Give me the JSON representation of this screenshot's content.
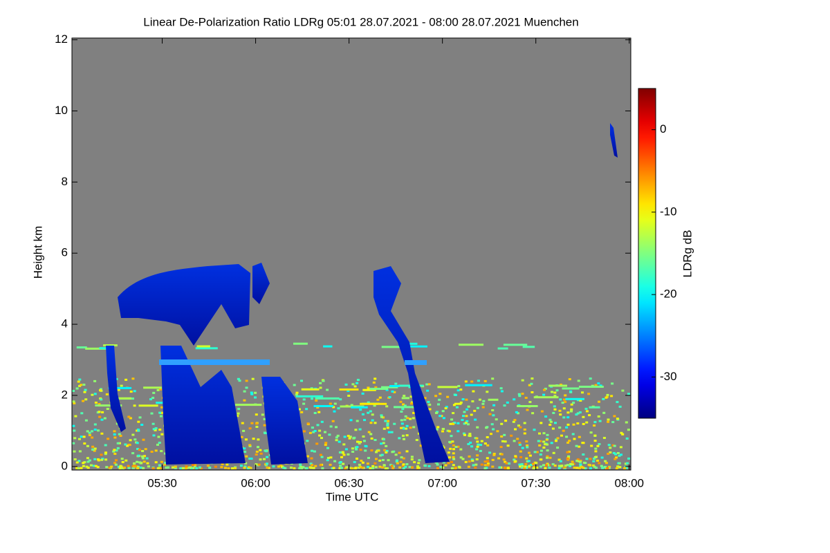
{
  "chart_data": {
    "type": "heatmap",
    "title": "Linear De-Polarization Ratio LDRg   05:01 28.07.2021 - 08:00 28.07.2021 Muenchen",
    "x_label": "Time UTC",
    "y_label": "Height km",
    "colorbar_label": "LDRg dB",
    "colormap": "jet",
    "background_color": "#808080",
    "xlim": [
      301,
      480.5
    ],
    "xticks": [
      {
        "value": 330,
        "label": "05:30"
      },
      {
        "value": 360,
        "label": "06:00"
      },
      {
        "value": 390,
        "label": "06:30"
      },
      {
        "value": 420,
        "label": "07:00"
      },
      {
        "value": 450,
        "label": "07:30"
      },
      {
        "value": 480,
        "label": "08:00"
      }
    ],
    "ylim": [
      -0.1,
      12.05
    ],
    "yticks": [
      0,
      2,
      4,
      6,
      8,
      10,
      12
    ],
    "clim": [
      -35,
      5
    ],
    "cticks": [
      -30,
      -20,
      -10,
      0
    ]
  }
}
